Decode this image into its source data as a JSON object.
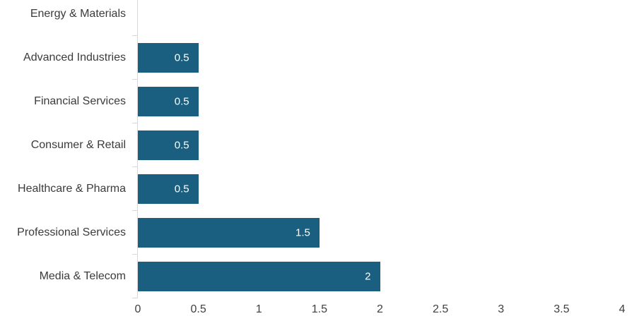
{
  "chart_data": {
    "type": "bar",
    "orientation": "horizontal",
    "title": "",
    "xlabel": "",
    "ylabel": "",
    "categories": [
      "Energy & Materials",
      "Advanced Industries",
      "Financial Services",
      "Consumer & Retail",
      "Healthcare & Pharma",
      "Professional Services",
      "Media & Telecom"
    ],
    "values": [
      0,
      0.5,
      0.5,
      0.5,
      0.5,
      1.5,
      2
    ],
    "bar_labels": [
      "",
      "0.5",
      "0.5",
      "0.5",
      "0.5",
      "1.5",
      "2"
    ],
    "x_ticks": [
      "0",
      "0.5",
      "1",
      "1.5",
      "2",
      "2.5",
      "3",
      "3.5",
      "4"
    ],
    "xlim": [
      0,
      4
    ],
    "grid": "off",
    "legend": "none",
    "bar_color": "#1A5F80",
    "category_label_color": "#3B3B3B",
    "tick_label_color": "#404040",
    "axis_color": "#D9D9D9",
    "value_label_color": "#FFFFFF"
  }
}
